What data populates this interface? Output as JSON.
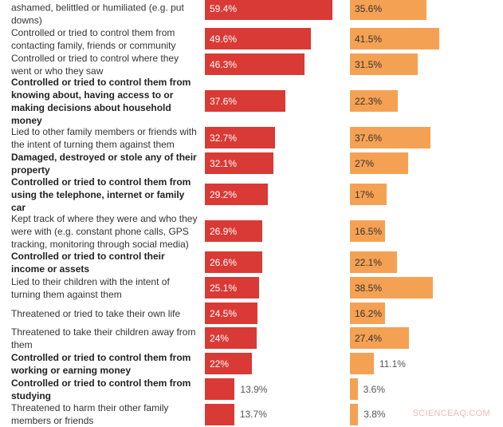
{
  "chart_data": {
    "type": "bar",
    "orientation": "horizontal",
    "colors": {
      "series_1": "#d93a35",
      "series_2": "#f5a153"
    },
    "categories": [
      {
        "label": "ashamed, belittled or humiliated (e.g. put downs)",
        "bold": false
      },
      {
        "label": "Controlled or tried to control them from contacting family, friends or community",
        "bold": false
      },
      {
        "label": "Controlled or tried to control where they went or who they saw",
        "bold": false
      },
      {
        "label": "Controlled or tried to control them from knowing about, having access to or making decisions about household money",
        "bold": true
      },
      {
        "label": "Lied to other family members or friends with the intent of turning them against them",
        "bold": false
      },
      {
        "label": "Damaged, destroyed or stole any of their property",
        "bold": true
      },
      {
        "label": "Controlled or tried to control them from using the telephone, internet or family car",
        "bold": true
      },
      {
        "label": "Kept track of where they were and who they were with (e.g. constant phone calls, GPS tracking, monitoring through social media)",
        "bold": false
      },
      {
        "label": "Controlled or tried to control their income or assets",
        "bold": true
      },
      {
        "label": "Lied to their children with the intent of turning them against them",
        "bold": false
      },
      {
        "label": "Threatened or tried to take their own life",
        "bold": false
      },
      {
        "label": "Threatened to take their children away from them",
        "bold": false
      },
      {
        "label": "Controlled or tried to control them from working or earning money",
        "bold": true
      },
      {
        "label": "Controlled or tried to control them from studying",
        "bold": true
      },
      {
        "label": "Threatened to harm their other family members or friends",
        "bold": false
      }
    ],
    "series": [
      {
        "values": [
          59.4,
          49.6,
          46.3,
          37.6,
          32.7,
          32.1,
          29.2,
          26.9,
          26.6,
          25.1,
          24.5,
          24,
          22,
          13.9,
          13.7
        ],
        "labels": [
          "59.4%",
          "49.6%",
          "46.3%",
          "37.6%",
          "32.7%",
          "32.1%",
          "29.2%",
          "26.9%",
          "26.6%",
          "25.1%",
          "24.5%",
          "24%",
          "22%",
          "13.9%",
          "13.7%"
        ]
      },
      {
        "values": [
          35.6,
          41.5,
          31.5,
          22.3,
          37.6,
          27,
          17,
          16.5,
          22.1,
          38.5,
          16.2,
          27.4,
          11.1,
          3.6,
          3.8
        ],
        "labels": [
          "35.6%",
          "41.5%",
          "31.5%",
          "22.3%",
          "37.6%",
          "27%",
          "17%",
          "16.5%",
          "22.1%",
          "38.5%",
          "16.2%",
          "27.4%",
          "11.1%",
          "3.6%",
          "3.8%"
        ]
      }
    ]
  },
  "watermark": "SCIENCEAQ.COM"
}
